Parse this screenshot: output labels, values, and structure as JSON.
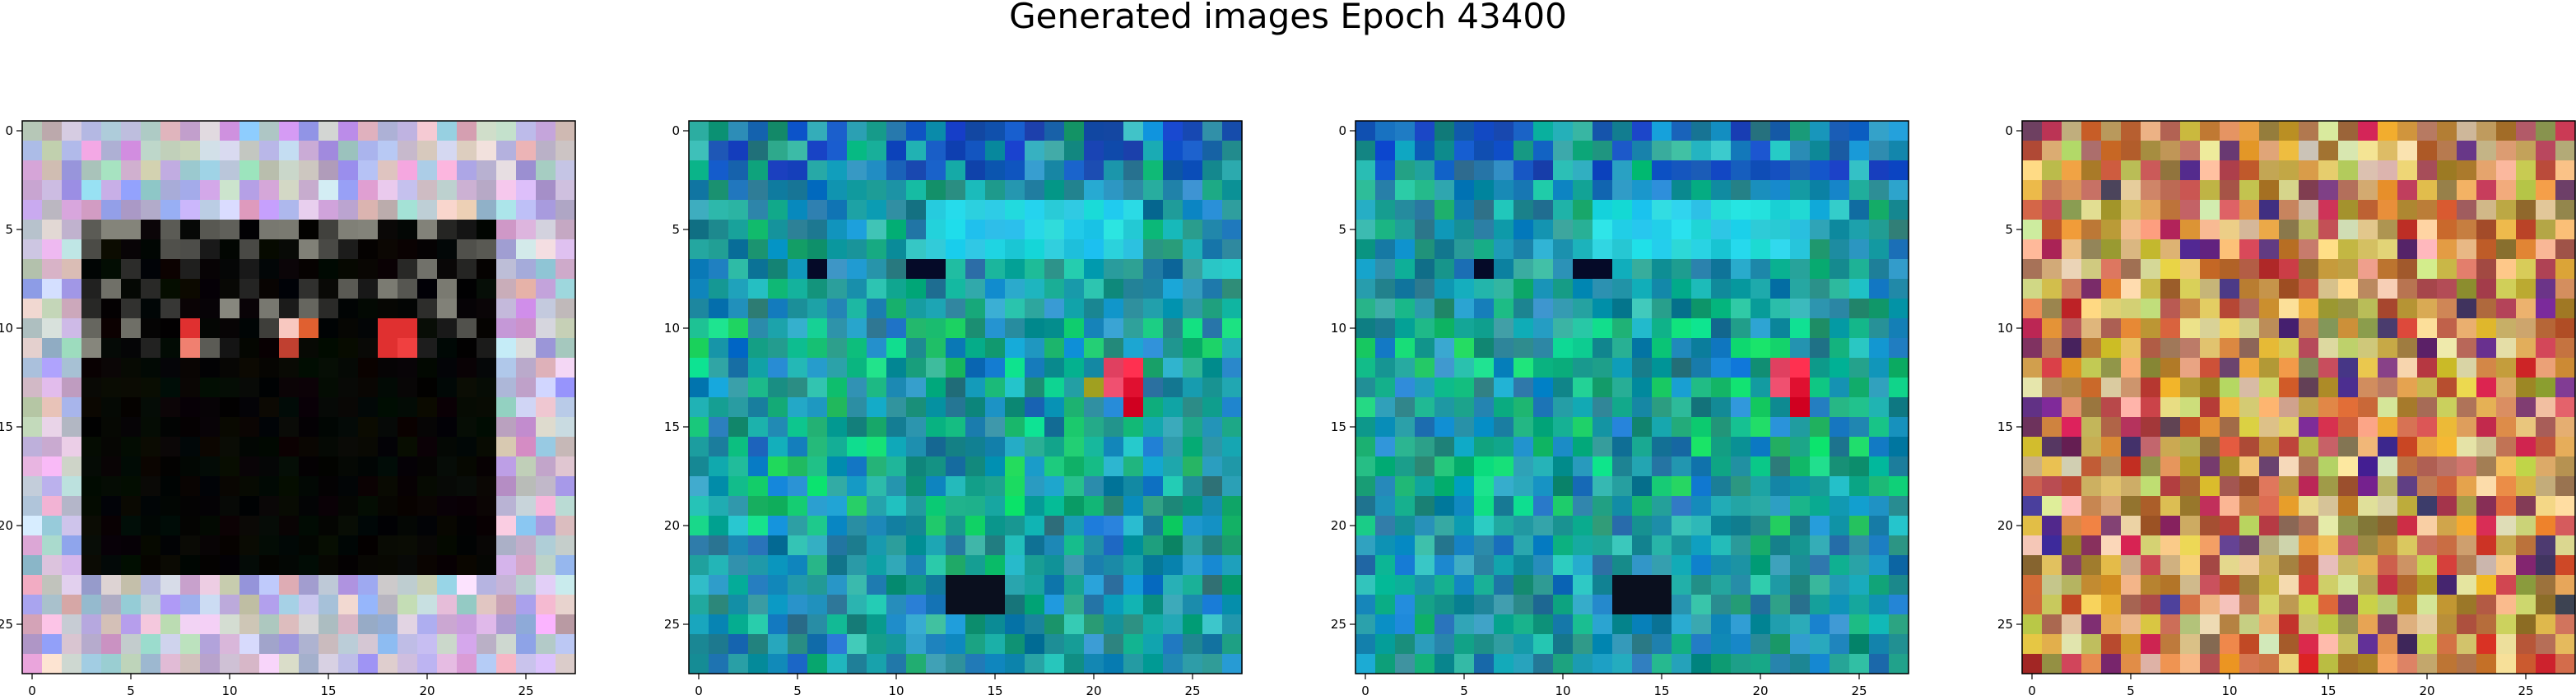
{
  "title": "Generated images Epoch 43400",
  "chart_data": [
    {
      "type": "heatmap",
      "name": "sample-1",
      "description_role": "generated RGB image, 28x28 pixels",
      "grid_size": 28,
      "xticks": [
        0,
        5,
        10,
        15,
        20,
        25
      ],
      "yticks": [
        0,
        5,
        10,
        15,
        20,
        25
      ],
      "style": "pastel-border-dark-center",
      "palette": [
        "#b8a8d8",
        "#d8c0d0",
        "#a8b0e0",
        "#e0d0e8",
        "#c8b8c0",
        "#b0c8d8"
      ],
      "hot_pixels": [
        {
          "x": 8,
          "y": 10,
          "color": "#e03030"
        },
        {
          "x": 8,
          "y": 11,
          "color": "#f08070"
        },
        {
          "x": 13,
          "y": 10,
          "color": "#f8c8c0"
        },
        {
          "x": 14,
          "y": 10,
          "color": "#e06030"
        },
        {
          "x": 18,
          "y": 10,
          "color": "#e03030"
        },
        {
          "x": 19,
          "y": 10,
          "color": "#e03030"
        },
        {
          "x": 18,
          "y": 11,
          "color": "#e03030"
        },
        {
          "x": 19,
          "y": 11,
          "color": "#f04040"
        },
        {
          "x": 13,
          "y": 11,
          "color": "#c04030"
        }
      ]
    },
    {
      "type": "heatmap",
      "name": "sample-2",
      "grid_size": 28,
      "xticks": [
        0,
        5,
        10,
        15,
        20,
        25
      ],
      "yticks": [
        0,
        5,
        10,
        15,
        20,
        25
      ],
      "style": "teal-noise",
      "palette": [
        "#20a0a0",
        "#1080a8",
        "#30b0b8",
        "#208890",
        "#10a080",
        "#2090c0"
      ],
      "hot_pixels": [
        {
          "x": 21,
          "y": 12,
          "color": "#e04060"
        },
        {
          "x": 22,
          "y": 12,
          "color": "#ff3050"
        },
        {
          "x": 22,
          "y": 13,
          "color": "#e01030"
        },
        {
          "x": 21,
          "y": 13,
          "color": "#f05070"
        },
        {
          "x": 22,
          "y": 14,
          "color": "#d00020"
        },
        {
          "x": 20,
          "y": 13,
          "color": "#a0a020"
        }
      ]
    },
    {
      "type": "heatmap",
      "name": "sample-3",
      "grid_size": 28,
      "xticks": [
        0,
        5,
        10,
        15,
        20,
        25
      ],
      "yticks": [
        0,
        5,
        10,
        15,
        20,
        25
      ],
      "style": "teal-noise-variant",
      "palette": [
        "#20a0a0",
        "#1080a8",
        "#30b0b8",
        "#208890",
        "#10a080",
        "#2090c0"
      ],
      "hot_pixels": [
        {
          "x": 21,
          "y": 12,
          "color": "#e04060"
        },
        {
          "x": 22,
          "y": 12,
          "color": "#ff3050"
        },
        {
          "x": 22,
          "y": 13,
          "color": "#e01030"
        },
        {
          "x": 21,
          "y": 13,
          "color": "#f05070"
        },
        {
          "x": 22,
          "y": 14,
          "color": "#d00020"
        }
      ]
    },
    {
      "type": "heatmap",
      "name": "sample-4",
      "grid_size": 28,
      "xticks": [
        0,
        5,
        10,
        15,
        20,
        25
      ],
      "yticks": [
        0,
        5,
        10,
        15,
        20,
        25
      ],
      "style": "warm-noise",
      "palette": [
        "#d8a040",
        "#c87850",
        "#e0b870",
        "#b86040",
        "#d0c060",
        "#e8d0a0",
        "#c04040",
        "#a08040"
      ],
      "hot_pixels": []
    }
  ]
}
